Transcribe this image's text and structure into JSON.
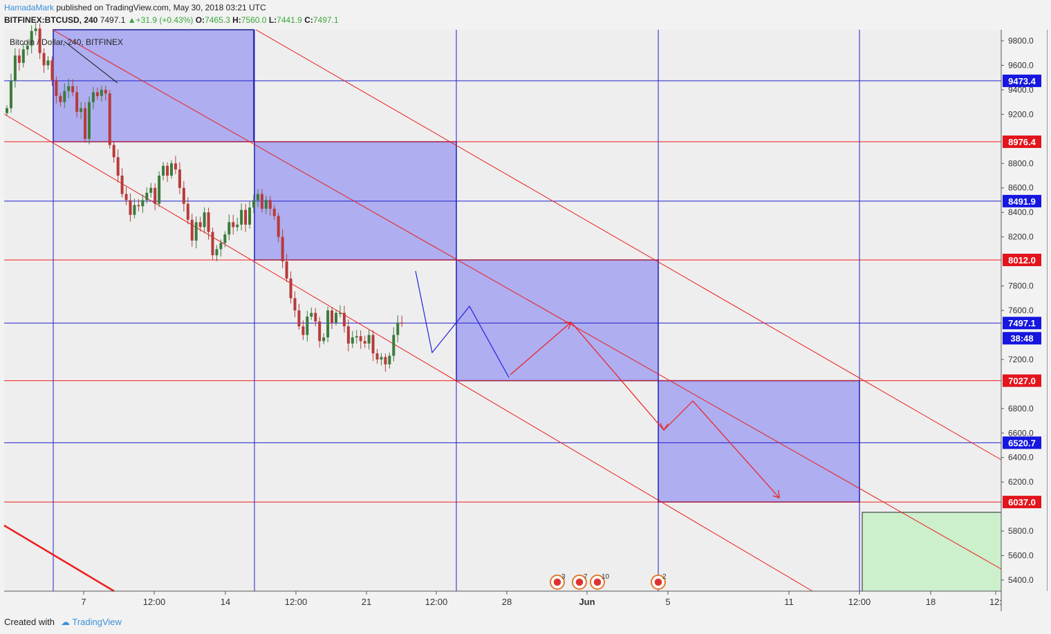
{
  "header": {
    "author": "HamadaMark",
    "published_text": "published on TradingView.com, May 30, 2018 03:21 UTC",
    "symbol": "BITFINEX:BTCUSD, 240",
    "last": "7497.1",
    "change": "+31.9 (+0.43%)",
    "open_label": "O:",
    "open": "7465.3",
    "high_label": "H:",
    "high": "7560.0",
    "low_label": "L:",
    "low": "7441.9",
    "close_label": "C:",
    "close": "7497.1"
  },
  "footer": {
    "created_with": "Created with",
    "brand": "TradingView"
  },
  "colors": {
    "up": "#3c7a3c",
    "down": "#b83a3a",
    "box": "#aeaef0",
    "blue_line": "#2020cc",
    "red_line": "#ee1c1c",
    "green_box": "#ccefcc"
  },
  "chart_data": {
    "type": "candlestick",
    "title": "Bitcoin / Dollar, 240, BITFINEX",
    "yaxis": {
      "ticks": [
        "9800.0",
        "9600.0",
        "9400.0",
        "9200.0",
        "8800.0",
        "8600.0",
        "8400.0",
        "8200.0",
        "7800.0",
        "7600.0",
        "7200.0",
        "6800.0",
        "6600.0",
        "6400.0",
        "6200.0",
        "5800.0",
        "5600.0",
        "5400.0"
      ],
      "ylim": [
        5310,
        9895
      ]
    },
    "xaxis": {
      "ticks": [
        "7",
        "12:00",
        "14",
        "12:00",
        "21",
        "12:00",
        "28",
        "Jun",
        "5",
        "11",
        "12:00",
        "18",
        "12:"
      ]
    },
    "price_labels": [
      {
        "value": "9473.4",
        "color": "blue"
      },
      {
        "value": "8976.4",
        "color": "red"
      },
      {
        "value": "8491.9",
        "color": "blue"
      },
      {
        "value": "8012.0",
        "color": "red"
      },
      {
        "value": "7497.1",
        "color": "blue"
      },
      {
        "value": "38:48",
        "color": "blue"
      },
      {
        "value": "7027.0",
        "color": "red"
      },
      {
        "value": "6520.7",
        "color": "blue"
      },
      {
        "value": "6037.0",
        "color": "red"
      }
    ],
    "events": [
      {
        "count": "3"
      },
      {
        "count": "7"
      },
      {
        "count": "10"
      },
      {
        "count": "2"
      }
    ],
    "candles_close_path": [
      9250,
      9470,
      9680,
      9620,
      9730,
      9760,
      9880,
      9900,
      9700,
      9600,
      9640,
      9480,
      9350,
      9300,
      9390,
      9430,
      9380,
      9220,
      9250,
      9000,
      9300,
      9380,
      9350,
      9400,
      9370,
      8950,
      8850,
      8700,
      8550,
      8500,
      8380,
      8460,
      8450,
      8500,
      8560,
      8600,
      8470,
      8700,
      8780,
      8700,
      8800,
      8750,
      8600,
      8470,
      8340,
      8170,
      8320,
      8280,
      8400,
      8240,
      8050,
      8100,
      8150,
      8220,
      8320,
      8280,
      8300,
      8420,
      8300,
      8440,
      8500,
      8550,
      8430,
      8500,
      8430,
      8370,
      8200,
      8000,
      7860,
      7700,
      7600,
      7470,
      7400,
      7550,
      7580,
      7510,
      7350,
      7380,
      7600,
      7500,
      7580,
      7580,
      7470,
      7330,
      7380,
      7390,
      7350,
      7330,
      7400,
      7250,
      7200,
      7220,
      7160,
      7230,
      7400,
      7500,
      7497.1
    ]
  }
}
